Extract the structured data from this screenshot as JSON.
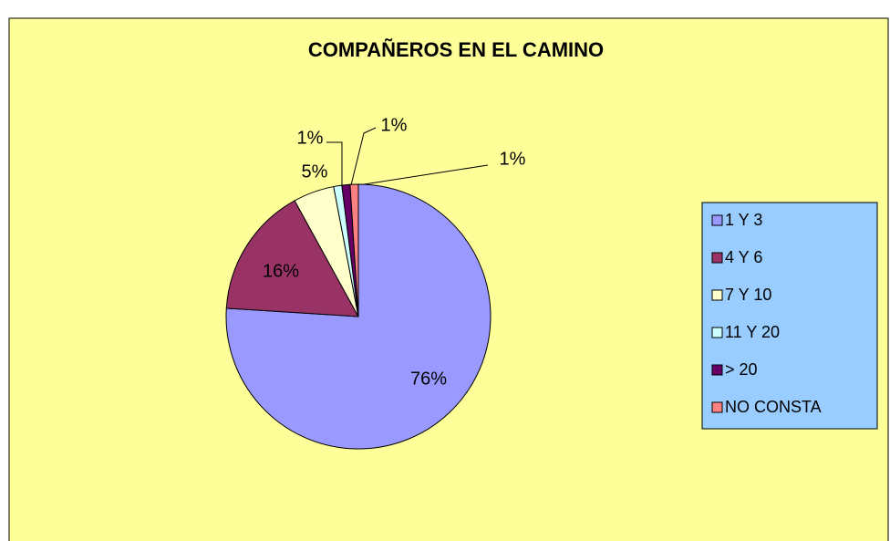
{
  "chart_data": {
    "type": "pie",
    "title": "COMPAÑEROS EN EL CAMINO",
    "categories": [
      "1 Y 3",
      "4 Y 6",
      "7 Y 10",
      "11 Y 20",
      "> 20",
      "NO CONSTA"
    ],
    "values": [
      76,
      16,
      5,
      1,
      1,
      1
    ],
    "value_labels": [
      "76%",
      "16%",
      "5%",
      "1%",
      "1%",
      "1%"
    ],
    "colors": [
      "#9999ff",
      "#993366",
      "#ffffcc",
      "#ccffff",
      "#660066",
      "#ff8080"
    ],
    "legend": "right"
  }
}
